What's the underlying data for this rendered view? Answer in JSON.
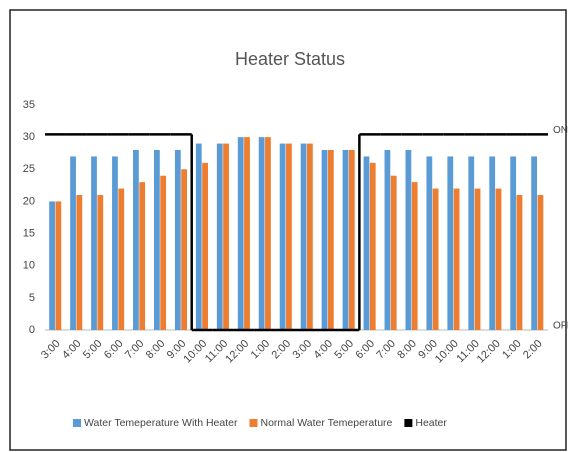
{
  "chart_data": {
    "type": "bar",
    "title": "Heater Status",
    "categories": [
      "3:00",
      "4:00",
      "5:00",
      "6:00",
      "7:00",
      "8:00",
      "9:00",
      "10:00",
      "11:00",
      "12:00",
      "1:00",
      "2:00",
      "3:00",
      "4:00",
      "5:00",
      "6:00",
      "7:00",
      "8:00",
      "9:00",
      "10:00",
      "11:00",
      "12:00",
      "1:00",
      "2:00"
    ],
    "series": [
      {
        "name": "Water Temeperature With Heater",
        "color": "#5b9bd5",
        "values": [
          20,
          27,
          27,
          27,
          28,
          28,
          28,
          29,
          29,
          30,
          30,
          29,
          29,
          28,
          28,
          27,
          28,
          28,
          27,
          27,
          27,
          27,
          27,
          27
        ]
      },
      {
        "name": "Normal Water Temeperature",
        "color": "#ed7d31",
        "values": [
          20,
          21,
          21,
          22,
          23,
          24,
          25,
          26,
          29,
          30,
          30,
          29,
          29,
          28,
          28,
          26,
          24,
          23,
          22,
          22,
          22,
          22,
          21,
          21
        ]
      },
      {
        "name": "Heater",
        "color": "#000000",
        "type": "step",
        "axis": "y2",
        "values": [
          1,
          1,
          1,
          1,
          1,
          1,
          1,
          0,
          0,
          0,
          0,
          0,
          0,
          0,
          0,
          1,
          1,
          1,
          1,
          1,
          1,
          1,
          1,
          1
        ]
      }
    ],
    "ylim": [
      0,
      35
    ],
    "yticks": [
      0,
      5,
      10,
      15,
      20,
      25,
      30,
      35
    ],
    "y2lim": [
      0,
      1.15
    ],
    "y2ticks": [
      {
        "value": 0,
        "label": "OFF"
      },
      {
        "value": 1,
        "label": "ON"
      }
    ],
    "legend": "bottom",
    "grid": false
  }
}
